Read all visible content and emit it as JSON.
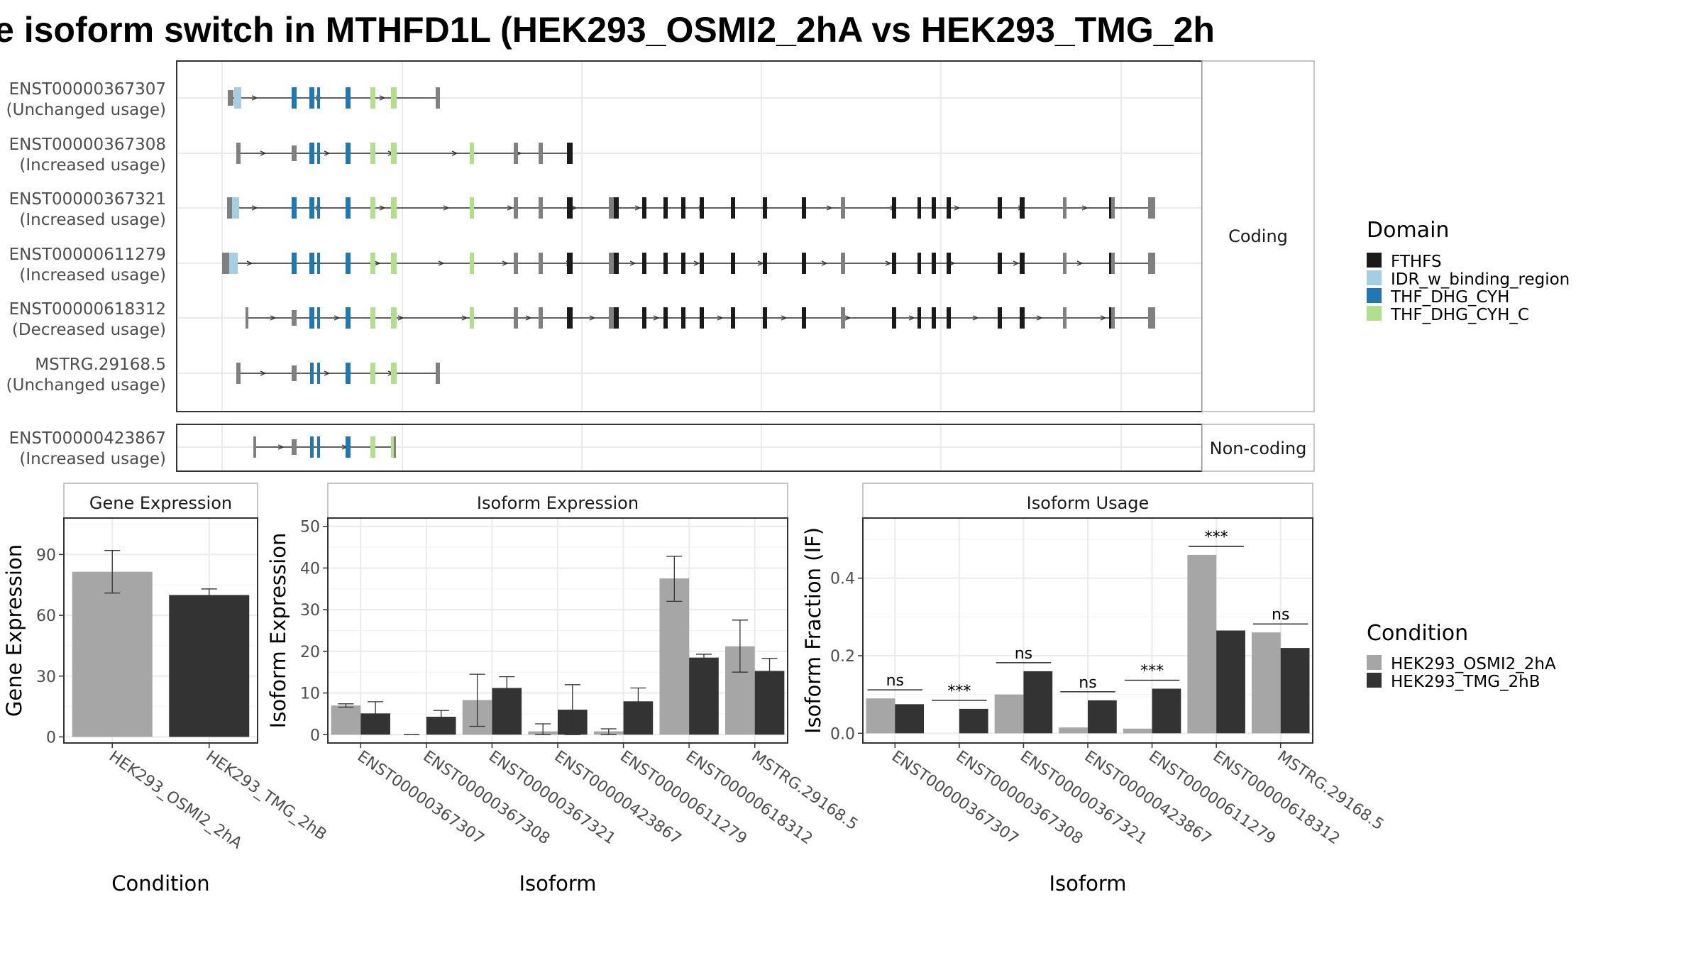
{
  "title": "e isoform switch in MTHFD1L (HEK293_OSMI2_2hA vs HEK293_TMG_2h",
  "colors": {
    "FTHFS": "#1a1a1a",
    "IDR_w_binding_region": "#a6cee3",
    "THF_DHG_CYH": "#1f78b4",
    "THF_DHG_CYH_C": "#b2df8a",
    "no_domain": "#808080",
    "cond_A": "#a6a6a6",
    "cond_B": "#333333"
  },
  "structure": {
    "coding_label": "Coding",
    "noncoding_label": "Non-coding",
    "coding_rows": [
      {
        "id": "ENST00000367307",
        "usage": "(Unchanged usage)"
      },
      {
        "id": "ENST00000367308",
        "usage": "(Increased usage)"
      },
      {
        "id": "ENST00000367321",
        "usage": "(Increased usage)"
      },
      {
        "id": "ENST00000611279",
        "usage": "(Increased usage)"
      },
      {
        "id": "ENST00000618312",
        "usage": "(Decreased usage)"
      },
      {
        "id": "MSTRG.29168.5",
        "usage": "(Unchanged usage)"
      }
    ],
    "noncoding_rows": [
      {
        "id": "ENST00000423867",
        "usage": "(Increased usage)"
      }
    ]
  },
  "legend": {
    "domain_title": "Domain",
    "domains": [
      "FTHFS",
      "IDR_w_binding_region",
      "THF_DHG_CYH",
      "THF_DHG_CYH_C"
    ],
    "condition_title": "Condition",
    "conditions": [
      "HEK293_OSMI2_2hA",
      "HEK293_TMG_2hB"
    ]
  },
  "chart_data": [
    {
      "type": "bar",
      "title": "Gene Expression",
      "xlabel": "Condition",
      "ylabel": "Gene Expression",
      "categories": [
        "HEK293_OSMI2_2hA",
        "HEK293_TMG_2hB"
      ],
      "values": [
        81.5,
        70
      ],
      "errors": [
        [
          71,
          92
        ],
        [
          67.5,
          73
        ]
      ],
      "ylim": [
        -3,
        108
      ],
      "yticks": [
        0,
        30,
        60,
        90
      ]
    },
    {
      "type": "bar",
      "title": "Isoform Expression",
      "xlabel": "Isoform",
      "ylabel": "Isoform Expression",
      "categories": [
        "ENST00000367307",
        "ENST00000367308",
        "ENST00000367321",
        "ENST00000423867",
        "ENST00000611279",
        "ENST00000618312",
        "MSTRG.29168.5"
      ],
      "series": [
        {
          "name": "HEK293_OSMI2_2hA",
          "values": [
            7,
            0,
            8.3,
            0.8,
            0.8,
            37.5,
            21.2
          ],
          "errors": [
            [
              6.6,
              7.4
            ],
            [
              0,
              0
            ],
            [
              2,
              14.5
            ],
            [
              0,
              2.6
            ],
            [
              0,
              1.4
            ],
            [
              32,
              42.8
            ],
            [
              15,
              27.5
            ]
          ]
        },
        {
          "name": "HEK293_TMG_2hB",
          "values": [
            5.1,
            4.3,
            11.2,
            6,
            8,
            18.5,
            15.3
          ],
          "errors": [
            [
              2.3,
              7.9
            ],
            [
              2.7,
              5.8
            ],
            [
              8.3,
              13.9
            ],
            [
              0,
              12
            ],
            [
              4.9,
              11.2
            ],
            [
              17.6,
              19.3
            ],
            [
              12.2,
              18.3
            ]
          ]
        }
      ],
      "ylim": [
        -2,
        52
      ],
      "yticks": [
        0,
        10,
        20,
        30,
        40,
        50
      ]
    },
    {
      "type": "bar",
      "title": "Isoform Usage",
      "xlabel": "Isoform",
      "ylabel": "Isoform Fraction (IF)",
      "categories": [
        "ENST00000367307",
        "ENST00000367308",
        "ENST00000367321",
        "ENST00000423867",
        "ENST00000611279",
        "ENST00000618312",
        "MSTRG.29168.5"
      ],
      "series": [
        {
          "name": "HEK293_OSMI2_2hA",
          "values": [
            0.09,
            0,
            0.1,
            0.015,
            0.012,
            0.46,
            0.26
          ]
        },
        {
          "name": "HEK293_TMG_2hB",
          "values": [
            0.075,
            0.063,
            0.16,
            0.085,
            0.115,
            0.265,
            0.22
          ]
        }
      ],
      "significance": [
        "ns",
        "***",
        "ns",
        "ns",
        "***",
        "***",
        "ns"
      ],
      "ylim": [
        -0.025,
        0.555
      ],
      "yticks": [
        0.0,
        0.2,
        0.4
      ],
      "ytick_labels": [
        "0.0",
        "0.2",
        "0.4"
      ]
    }
  ]
}
